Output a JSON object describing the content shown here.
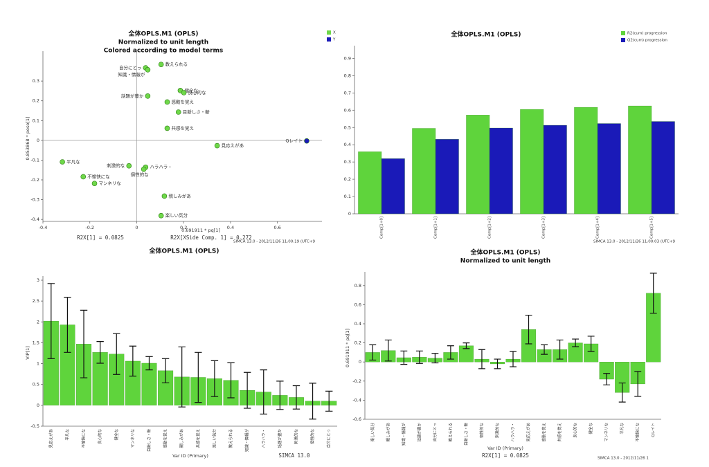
{
  "chart_data": [
    {
      "type": "scatter",
      "title": "全体OPLS.M1 (OPLS)",
      "subtitles": [
        "Normalized to unit length",
        "Colored according to model terms"
      ],
      "xlabel": "0.691911 * pq[1]",
      "ylabel": "0.853868 * poso[1]",
      "notes": [
        "R2X[1] = 0.0825",
        "R2X[XSide Comp. 1] = 0.272",
        "SIMCA 13.0 - 2012/11/26 11:00:19 (UTC+9"
      ],
      "xlim": [
        -0.4,
        0.79
      ],
      "xticks": [
        -0.4,
        -0.2,
        0,
        0.2,
        0.4,
        0.6
      ],
      "ylim": [
        -0.41,
        0.43
      ],
      "yticks": [
        -0.4,
        -0.3,
        -0.2,
        -0.1,
        0,
        0.1,
        0.2,
        0.3
      ],
      "legend": "top-right",
      "series": [
        {
          "name": "X",
          "color": "#6fd84a",
          "labels": [
            "教えられる",
            "自分にとっ",
            "知識・情報が",
            "健全な",
            "良心的な",
            "話題が豊か",
            "感動を覚え",
            "目新しさ・斬",
            "共感を覚え",
            "見応えがあ",
            "平凡な",
            "刺激的な",
            "ハラハラ・",
            "個性的な",
            "不愉快にな",
            "マンネリな",
            "親しみがあ",
            "楽しい気分"
          ],
          "x": [
            0.104,
            0.038,
            0.047,
            0.186,
            0.201,
            0.047,
            0.13,
            0.178,
            0.13,
            0.343,
            -0.317,
            -0.033,
            0.038,
            0.03,
            -0.228,
            -0.18,
            0.118,
            0.104
          ],
          "y": [
            0.384,
            0.367,
            0.357,
            0.252,
            0.241,
            0.224,
            0.194,
            0.143,
            0.061,
            -0.027,
            -0.109,
            -0.129,
            -0.136,
            -0.146,
            -0.184,
            -0.218,
            -0.282,
            -0.381
          ]
        },
        {
          "name": "Y",
          "color": "#1a1ab8",
          "labels": [
            "Qレイト"
          ],
          "x": [
            0.725
          ],
          "y": [
            -0.003
          ]
        }
      ]
    },
    {
      "type": "bar",
      "title": "全体OPLS.M1 (OPLS)",
      "notes": [
        "SIMCA 13.0 - 2012/11/26 11:00:03 (UTC+9"
      ],
      "categories": [
        "Comp[1+0]",
        "Comp[1+1]",
        "Comp[1+2]",
        "Comp[1+3]",
        "Comp[1+4]",
        "Comp[1+5]"
      ],
      "ylim": [
        0,
        0.95
      ],
      "yticks": [
        0,
        0.1,
        0.2,
        0.3,
        0.4,
        0.5,
        0.6,
        0.7,
        0.8,
        0.9
      ],
      "legend": "top-right",
      "series": [
        {
          "name": "R2(cum) progression",
          "color": "#5fd43c",
          "values": [
            0.36,
            0.495,
            0.572,
            0.605,
            0.617,
            0.625
          ]
        },
        {
          "name": "Q2(cum) progression",
          "color": "#1a1ab8",
          "values": [
            0.32,
            0.432,
            0.497,
            0.513,
            0.523,
            0.535
          ]
        }
      ]
    },
    {
      "type": "bar",
      "title": "全体OPLS.M1 (OPLS)",
      "xlabel": "Var ID (Primary)",
      "ylabel": "VIP[1]",
      "notes": [
        "SIMCA 13.0"
      ],
      "categories": [
        "見応えがあ",
        "平凡な",
        "不愉快にな",
        "良心的な",
        "健全な",
        "マンネリな",
        "目新しさ・斬",
        "感動を覚え",
        "親しみがあ",
        "共感を覚え",
        "楽しい気分",
        "教えられる",
        "知識・情報が",
        "ハラハラ・",
        "話題が豊か",
        "刺激的な",
        "個性的な",
        "自分にとっ"
      ],
      "values": [
        2.02,
        1.93,
        1.47,
        1.27,
        1.23,
        1.06,
        1.01,
        0.83,
        0.68,
        0.67,
        0.64,
        0.6,
        0.36,
        0.32,
        0.24,
        0.19,
        0.1,
        0.1
      ],
      "errors": [
        0.9,
        0.66,
        0.81,
        0.26,
        0.49,
        0.36,
        0.16,
        0.29,
        0.72,
        0.6,
        0.43,
        0.42,
        0.43,
        0.53,
        0.34,
        0.28,
        0.43,
        0.24
      ],
      "color": "#5fd43c",
      "ylim": [
        -0.5,
        3
      ],
      "yticks": [
        -0.5,
        0,
        0.5,
        1,
        1.5,
        2,
        2.5,
        3
      ]
    },
    {
      "type": "bar",
      "title": "全体OPLS.M1 (OPLS)",
      "subtitles": [
        "Normalized to unit length"
      ],
      "xlabel": "Var ID (Primary)",
      "ylabel": "0.691911 * pq[1]",
      "notes": [
        "R2X[1] = 0.0825",
        "SIMCA 13.0 - 2012/11/26 1"
      ],
      "categories": [
        "楽しい気分",
        "親しみがあ",
        "知識・情報が",
        "話題が豊か",
        "自分にとっ",
        "教えられる",
        "目新しさ・斬",
        "個性的な",
        "刺激的な",
        "ハラハラ・",
        "見応えがあ",
        "感動を覚え",
        "共感を覚え",
        "良心的な",
        "健全な",
        "マンネリな",
        "平凡な",
        "不愉快にな",
        "Qレイト"
      ],
      "values": [
        0.1,
        0.12,
        0.045,
        0.05,
        0.04,
        0.1,
        0.17,
        0.03,
        -0.02,
        0.03,
        0.34,
        0.13,
        0.13,
        0.2,
        0.19,
        -0.18,
        -0.32,
        -0.23,
        0.72
      ],
      "errors": [
        0.08,
        0.11,
        0.07,
        0.065,
        0.05,
        0.07,
        0.03,
        0.1,
        0.05,
        0.08,
        0.15,
        0.05,
        0.1,
        0.04,
        0.08,
        0.06,
        0.1,
        0.13,
        0.21
      ],
      "color": "#5fd43c",
      "ylim": [
        -0.6,
        0.9
      ],
      "yticks": [
        -0.6,
        -0.4,
        -0.2,
        0,
        0.2,
        0.4,
        0.6,
        0.8
      ]
    }
  ]
}
